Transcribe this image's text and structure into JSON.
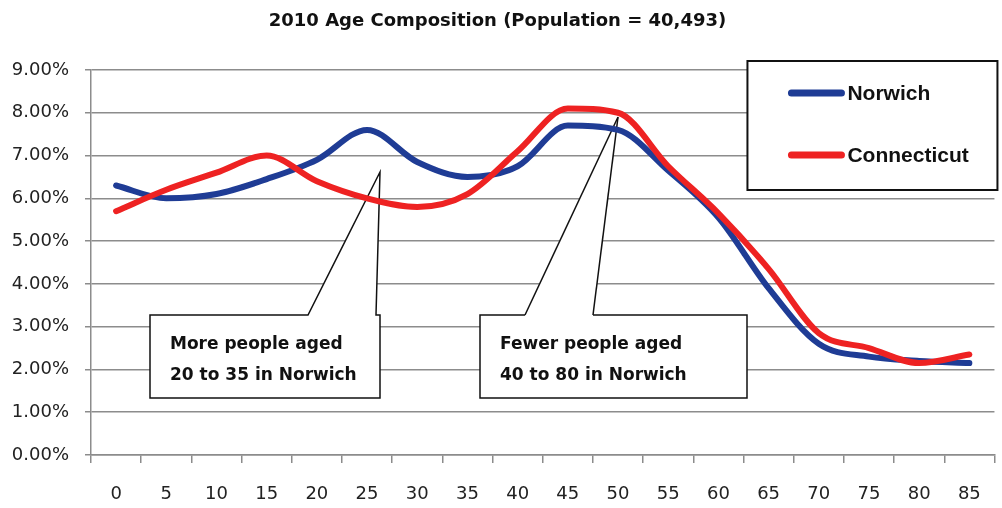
{
  "chart_data": {
    "type": "line",
    "title": "2010 Age Composition (Population = 40,493)",
    "categories": [
      "0",
      "5",
      "10",
      "15",
      "20",
      "25",
      "30",
      "35",
      "40",
      "45",
      "50",
      "55",
      "60",
      "65",
      "70",
      "75",
      "80",
      "85"
    ],
    "series": [
      {
        "name": "Norwich",
        "color": "#1f3c95",
        "values": [
          6.3,
          6.0,
          6.1,
          6.45,
          6.9,
          7.6,
          6.85,
          6.5,
          6.75,
          7.7,
          7.6,
          6.65,
          5.55,
          3.9,
          2.6,
          2.3,
          2.2,
          2.15
        ]
      },
      {
        "name": "Connecticut",
        "color": "#ee2222",
        "values": [
          5.7,
          6.2,
          6.6,
          7.0,
          6.4,
          6.0,
          5.8,
          6.1,
          7.1,
          8.1,
          8.0,
          6.75,
          5.65,
          4.35,
          2.85,
          2.5,
          2.15,
          2.35
        ]
      }
    ],
    "ylim": [
      0,
      9
    ],
    "yticks": [
      {
        "value": 0,
        "label": "0.00%"
      },
      {
        "value": 1,
        "label": "1.00%"
      },
      {
        "value": 2,
        "label": "2.00%"
      },
      {
        "value": 3,
        "label": "3.00%"
      },
      {
        "value": 4,
        "label": "4.00%"
      },
      {
        "value": 5,
        "label": "5.00%"
      },
      {
        "value": 6,
        "label": "6.00%"
      },
      {
        "value": 7,
        "label": "7.00%"
      },
      {
        "value": 8,
        "label": "8.00%"
      },
      {
        "value": 9,
        "label": "9.00%"
      }
    ],
    "grid": "y",
    "legend": "top right",
    "marker": "none",
    "annotations": [
      "More people aged\n20 to 35 in Norwich",
      {
        "text": "Fewer people aged\n40 to 80 in Norwich",
        "x": "50",
        "y": 7.9
      }
    ]
  }
}
